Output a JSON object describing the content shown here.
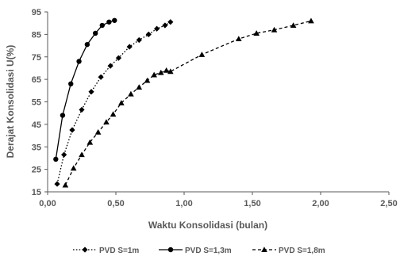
{
  "chart_data": {
    "type": "line",
    "xlabel": "Waktu Konsolidasi (bulan)",
    "ylabel": "Derajat Konsolidasi U(%)",
    "xlim": [
      0,
      2.5
    ],
    "ylim": [
      15,
      95
    ],
    "x_ticks": [
      "0,00",
      "0,50",
      "1,00",
      "1,50",
      "2,00",
      "2,50"
    ],
    "y_ticks": [
      "15",
      "25",
      "35",
      "45",
      "55",
      "65",
      "75",
      "85",
      "95"
    ],
    "grid": false,
    "legend_position": "bottom",
    "series": [
      {
        "name": "PVD S=1m",
        "marker": "diamond",
        "line_style": "dotted",
        "color": "#000000",
        "x": [
          0.07,
          0.12,
          0.18,
          0.25,
          0.32,
          0.39,
          0.46,
          0.52,
          0.6,
          0.67,
          0.74,
          0.8,
          0.86,
          0.9
        ],
        "y": [
          18.5,
          31.5,
          42.5,
          51.5,
          59.5,
          66,
          71,
          74.5,
          79.5,
          82.5,
          85,
          87.5,
          89,
          90.5
        ]
      },
      {
        "name": "PVD S=1,3m",
        "marker": "circle",
        "line_style": "solid",
        "color": "#000000",
        "x": [
          0.06,
          0.11,
          0.17,
          0.23,
          0.29,
          0.35,
          0.4,
          0.45,
          0.49
        ],
        "y": [
          29.5,
          49,
          63,
          73,
          80.5,
          85.5,
          89,
          90.5,
          91.2
        ]
      },
      {
        "name": "PVD S=1,8m",
        "marker": "triangle",
        "line_style": "dashed",
        "color": "#000000",
        "x": [
          0.13,
          0.19,
          0.25,
          0.31,
          0.37,
          0.43,
          0.48,
          0.54,
          0.61,
          0.67,
          0.73,
          0.78,
          0.83,
          0.87,
          0.9,
          1.13,
          1.4,
          1.53,
          1.66,
          1.8,
          1.93
        ],
        "y": [
          18,
          25.5,
          31.5,
          37,
          41.5,
          46,
          49.5,
          54.5,
          58.5,
          61.5,
          64.5,
          67,
          68,
          69,
          68.5,
          76,
          83,
          85.5,
          87,
          89,
          91
        ]
      }
    ]
  }
}
